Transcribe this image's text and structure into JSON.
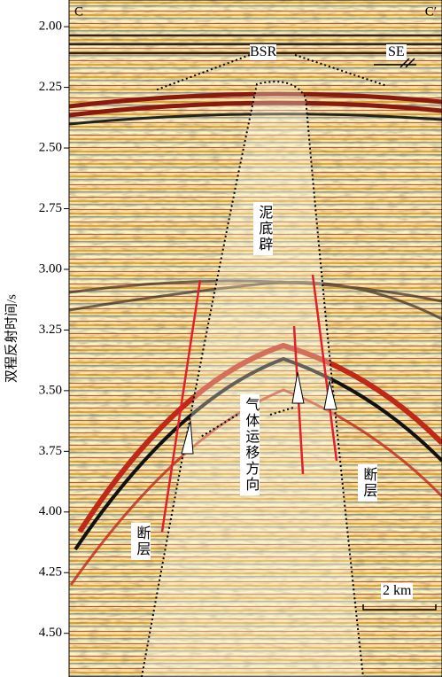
{
  "axis": {
    "label": "双程反射时间/s",
    "range": [
      1.89,
      4.68
    ],
    "ticks": [
      {
        "value": 2,
        "label": "2.00"
      },
      {
        "value": 2.25,
        "label": "2.25"
      },
      {
        "value": 2.5,
        "label": "2.50"
      },
      {
        "value": 2.75,
        "label": "2.75"
      },
      {
        "value": 3,
        "label": "3.00"
      },
      {
        "value": 3.25,
        "label": "3.25"
      },
      {
        "value": 3.5,
        "label": "3.50"
      },
      {
        "value": 3.75,
        "label": "3.75"
      },
      {
        "value": 4,
        "label": "4.00"
      },
      {
        "value": 4.25,
        "label": "4.25"
      },
      {
        "value": 4.5,
        "label": "4.50"
      }
    ]
  },
  "profile": {
    "start": "C",
    "end": "C′",
    "direction": "SE",
    "bsr": "BSR",
    "diapir": "泥底辟",
    "gas_migration": "气体运移方向",
    "fault_left": "断层",
    "fault_right": "断层",
    "scale": "2 km"
  }
}
